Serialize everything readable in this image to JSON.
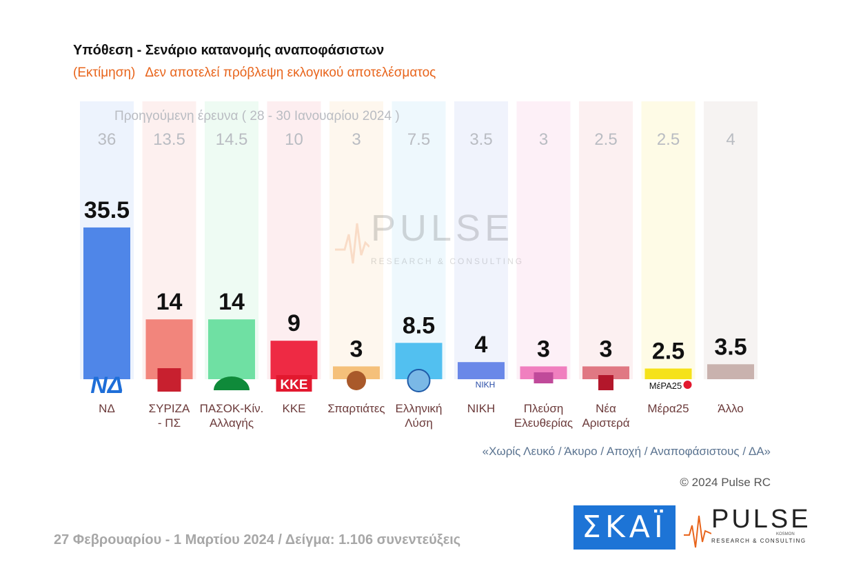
{
  "title": "Υπόθεση - Σενάριο κατανομής αναποφάσιστων",
  "subtitle_left": "(Εκτίμηση)",
  "subtitle_right": "Δεν αποτελεί πρόβλεψη εκλογικού αποτελέσματος",
  "previous_survey_label": "Προηγούμενη έρευνα ( 28 - 30 Ιανουαρίου 2024 )",
  "watermark": {
    "word": "PULSE",
    "sub": "RESEARCH & CONSULTING"
  },
  "footnote": "«Χωρίς Λευκό / Άκυρο / Αποχή / Αναποφάσιστους / ΔΑ»",
  "copyright": "© 2024 Pulse RC",
  "footer": "27 Φεβρουαρίου - 1 Μαρτίου 2024  /  Δείγμα:  1.106 συνεντεύξεις",
  "logos": {
    "skai": "ΣΚΑΪ",
    "pulse": "PULSE",
    "pulse_sub": "RESEARCH & CONSULTING",
    "pulse_kosmon": "KOSMON"
  },
  "chart_data": {
    "type": "bar",
    "categories": [
      [
        "ΝΔ"
      ],
      [
        "ΣΥΡΙΖΑ",
        "- ΠΣ"
      ],
      [
        "ΠΑΣΟΚ-Κίν.",
        "Αλλαγής"
      ],
      [
        "ΚΚΕ"
      ],
      [
        "Σπαρτιάτες"
      ],
      [
        "Ελληνική",
        "Λύση"
      ],
      [
        "ΝΙΚΗ"
      ],
      [
        "Πλεύση",
        "Ελευθερίας"
      ],
      [
        "Νέα",
        "Αριστερά"
      ],
      [
        "Μέρα25"
      ],
      [
        "Άλλο"
      ]
    ],
    "values": [
      35.5,
      14,
      14,
      9,
      3,
      8.5,
      4,
      3,
      3,
      2.5,
      3.5
    ],
    "value_labels": [
      "35.5",
      "14",
      "14",
      "9",
      "3",
      "8.5",
      "4",
      "3",
      "3",
      "2.5",
      "3.5"
    ],
    "previous_values": [
      36,
      13.5,
      14.5,
      10,
      3,
      7.5,
      3.5,
      3,
      2.5,
      2.5,
      4
    ],
    "previous_labels": [
      "36",
      "13.5",
      "14.5",
      "10",
      "3",
      "7.5",
      "3.5",
      "3",
      "2.5",
      "2.5",
      "4"
    ],
    "colors": [
      "#4f86e8",
      "#f2857c",
      "#6fe0a3",
      "#ee2a44",
      "#f5c07a",
      "#52c0f0",
      "#6a88e8",
      "#f07fbf",
      "#e07883",
      "#f5e21a",
      "#c9b2ae"
    ],
    "bg_colors": [
      "#edf3fd",
      "#fdf0ef",
      "#eefbf3",
      "#fdeef0",
      "#fef7ee",
      "#eef8fd",
      "#f0f3fc",
      "#fdf0f7",
      "#fcf0f1",
      "#fefbe6",
      "#f6f3f2"
    ],
    "party_icons": [
      "nd-logo-icon",
      "syriza-logo-icon",
      "pasok-logo-icon",
      "kke-logo-icon",
      "spartiates-helmet-icon",
      "elliniki-lysi-logo-icon",
      "niki-logo-icon",
      "plefsi-logo-icon",
      "nea-aristera-logo-icon",
      "mera25-logo-icon",
      "none"
    ],
    "logo_texts": [
      "ΝΔ",
      "",
      "",
      "ΚΚΕ",
      "",
      "",
      "ΝΙΚΗ",
      "",
      "",
      "ΜέΡΑ25",
      ""
    ],
    "xlabel": "",
    "ylabel": "",
    "ylim": [
      0,
      40
    ],
    "grid": false
  }
}
